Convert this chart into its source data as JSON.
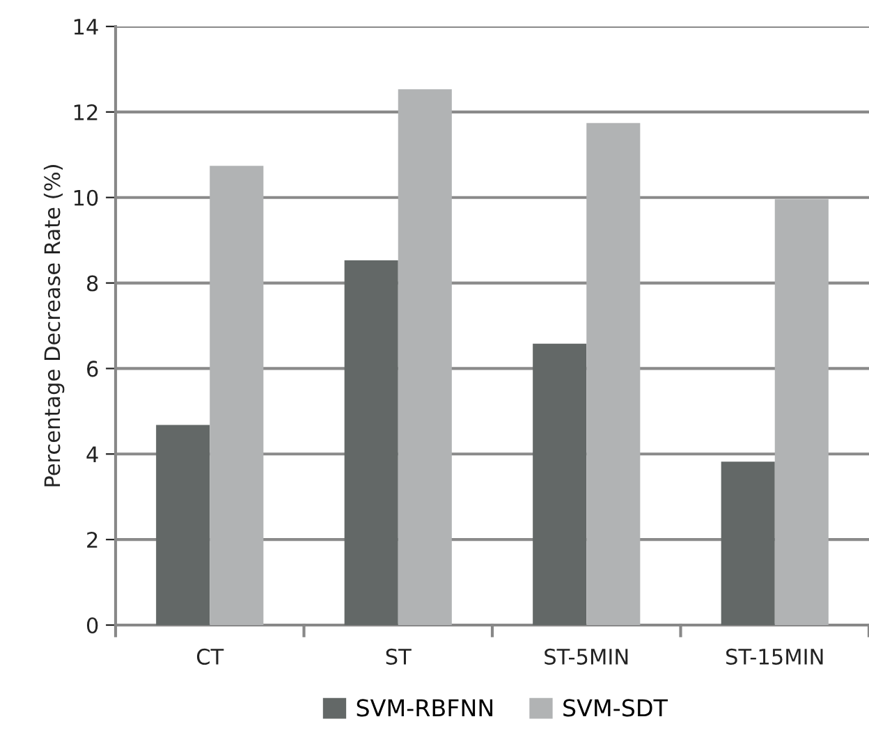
{
  "chart_data": {
    "type": "bar",
    "ylabel": "Percentage Decrease Rate (%)",
    "categories": [
      "CT",
      "ST",
      "ST-5MIN",
      "ST-15MIN"
    ],
    "series": [
      {
        "name": "SVM-RBFNN",
        "color": "#636867",
        "values": [
          4.68,
          8.53,
          6.58,
          3.82
        ]
      },
      {
        "name": "SVM-SDT",
        "color": "#b1b3b4",
        "values": [
          10.74,
          12.53,
          11.74,
          9.96
        ]
      }
    ],
    "ylim": [
      0,
      14
    ],
    "yticks": [
      0,
      2,
      4,
      6,
      8,
      10,
      12,
      14
    ],
    "grid": "y",
    "legend": "bottom"
  }
}
